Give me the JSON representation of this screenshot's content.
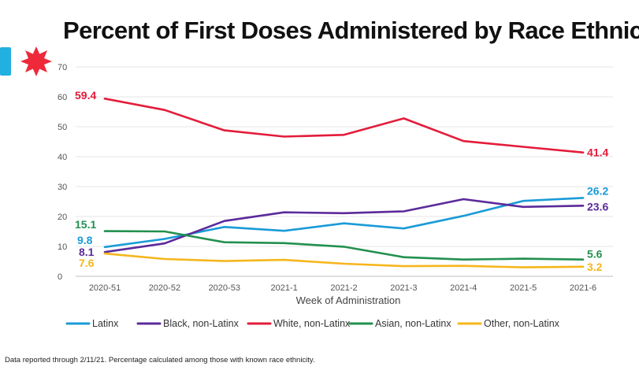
{
  "page_title": "Percent of First Doses Administered by Race Ethnicity",
  "footnote": "Data reported through 2/11/21. Percentage calculated among those with known race ethnicity.",
  "colors": {
    "flag_bar": "#21b0e0",
    "flag_star": "#ee2a3a"
  },
  "chart_data": {
    "type": "line",
    "title": "Percent of First Doses Administered by Race Ethnicity",
    "xlabel": "Week of Administration",
    "ylabel": "",
    "categories": [
      "2020-51",
      "2020-52",
      "2020-53",
      "2021-1",
      "2021-2",
      "2021-3",
      "2021-4",
      "2021-5",
      "2021-6"
    ],
    "ylim": [
      0,
      70
    ],
    "yticks": [
      0,
      10,
      20,
      30,
      40,
      50,
      60,
      70
    ],
    "grid": true,
    "legend_position": "bottom",
    "series": [
      {
        "name": "Latinx",
        "color": "#1a9bd7",
        "values": [
          9.8,
          12.5,
          16.5,
          15.2,
          17.7,
          16.0,
          20.2,
          25.2,
          26.2
        ],
        "start_label": "9.8",
        "end_label": "26.2"
      },
      {
        "name": "Black, non-Latinx",
        "color": "#5b2a9a",
        "values": [
          8.1,
          11.0,
          18.5,
          21.4,
          21.1,
          21.7,
          25.8,
          23.2,
          23.6
        ],
        "start_label": "8.1",
        "end_label": "23.6"
      },
      {
        "name": "White, non-Latinx",
        "color": "#e31c3a",
        "values": [
          59.4,
          55.6,
          48.8,
          46.7,
          47.3,
          52.8,
          45.2,
          43.3,
          41.4
        ],
        "start_label": "59.4",
        "end_label": "41.4"
      },
      {
        "name": "Asian, non-Latinx",
        "color": "#23904f",
        "values": [
          15.1,
          15.0,
          11.4,
          11.1,
          9.9,
          6.4,
          5.6,
          5.9,
          5.6
        ],
        "start_label": "15.1",
        "end_label": "5.6"
      },
      {
        "name": "Other, non-Latinx",
        "color": "#f6b61c",
        "values": [
          7.6,
          5.8,
          5.1,
          5.5,
          4.2,
          3.4,
          3.5,
          3.0,
          3.2
        ],
        "start_label": "7.6",
        "end_label": "3.2"
      }
    ]
  }
}
